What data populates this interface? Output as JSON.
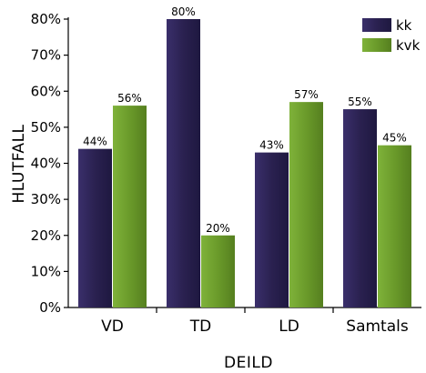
{
  "chart_data": {
    "type": "bar",
    "categories": [
      "VD",
      "TD",
      "LD",
      "Samtals"
    ],
    "series": [
      {
        "name": "kk",
        "values": [
          44,
          80,
          43,
          55
        ],
        "labels": [
          "44%",
          "80%",
          "43%",
          "55%"
        ],
        "color": "#2d2352"
      },
      {
        "name": "kvk",
        "values": [
          56,
          20,
          57,
          45
        ],
        "labels": [
          "56%",
          "20%",
          "57%",
          "45%"
        ],
        "color": "#6a9a2a"
      }
    ],
    "xlabel": "DEILD",
    "ylabel": "HLUTFALL",
    "ylim": [
      0,
      80
    ],
    "yticks": [
      0,
      10,
      20,
      30,
      40,
      50,
      60,
      70,
      80
    ],
    "ytick_labels": [
      "0%",
      "10%",
      "20%",
      "30%",
      "40%",
      "50%",
      "60%",
      "70%",
      "80%"
    ],
    "grid": false,
    "legend_position": "top-right"
  }
}
